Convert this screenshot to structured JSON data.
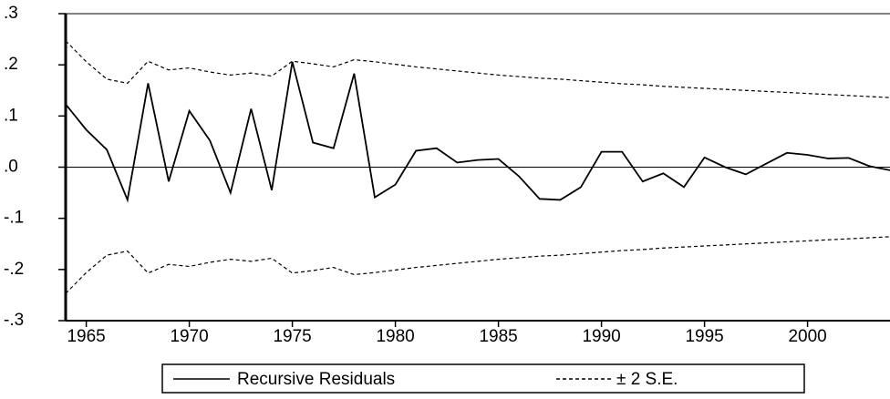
{
  "chart_data": {
    "type": "line",
    "x": [
      1964,
      1965,
      1966,
      1967,
      1968,
      1969,
      1970,
      1971,
      1972,
      1973,
      1974,
      1975,
      1976,
      1977,
      1978,
      1979,
      1980,
      1981,
      1982,
      1983,
      1984,
      1985,
      1986,
      1987,
      1988,
      1989,
      1990,
      1991,
      1992,
      1993,
      1994,
      1995,
      1996,
      1997,
      1998,
      1999,
      2000,
      2001,
      2002,
      2003,
      2004
    ],
    "series": [
      {
        "name": "Recursive Residuals",
        "color": "#000000",
        "style": "solid",
        "values": [
          0.123,
          0.073,
          0.034,
          -0.064,
          0.164,
          -0.028,
          0.11,
          0.052,
          -0.05,
          0.114,
          -0.045,
          0.206,
          0.048,
          0.037,
          0.183,
          -0.059,
          -0.034,
          0.032,
          0.037,
          0.009,
          0.014,
          0.016,
          -0.018,
          -0.062,
          -0.064,
          -0.039,
          0.03,
          0.03,
          -0.028,
          -0.012,
          -0.039,
          0.019,
          0,
          -0.014,
          0.007,
          0.028,
          0.024,
          0.017,
          0.018,
          0.002,
          -0.006
        ]
      },
      {
        "name": "± 2 S.E.",
        "color": "#000000",
        "style": "dashed",
        "values": [
          0.247,
          0.206,
          0.172,
          0.164,
          0.207,
          0.19,
          0.194,
          0.186,
          0.18,
          0.184,
          0.178,
          0.207,
          0.202,
          0.196,
          0.21,
          0.206,
          0.201,
          0.196,
          0.192,
          0.188,
          0.184,
          0.18,
          0.177,
          0.174,
          0.172,
          0.169,
          0.166,
          0.163,
          0.161,
          0.158,
          0.156,
          0.154,
          0.152,
          0.15,
          0.148,
          0.146,
          0.144,
          0.142,
          0.14,
          0.138,
          0.136
        ],
        "lower": [
          -0.247,
          -0.206,
          -0.172,
          -0.164,
          -0.207,
          -0.19,
          -0.194,
          -0.186,
          -0.18,
          -0.184,
          -0.178,
          -0.207,
          -0.202,
          -0.196,
          -0.21,
          -0.206,
          -0.201,
          -0.196,
          -0.192,
          -0.188,
          -0.184,
          -0.18,
          -0.177,
          -0.174,
          -0.172,
          -0.169,
          -0.166,
          -0.163,
          -0.161,
          -0.158,
          -0.156,
          -0.154,
          -0.152,
          -0.15,
          -0.148,
          -0.146,
          -0.144,
          -0.142,
          -0.14,
          -0.138,
          -0.136
        ]
      }
    ],
    "xlim": [
      1964,
      2004
    ],
    "xticks": [
      1965,
      1970,
      1975,
      1980,
      1985,
      1990,
      1995,
      2000
    ],
    "ylim": [
      -0.3,
      0.3
    ],
    "yticks": [
      {
        "value": -0.3,
        "label": "-.3"
      },
      {
        "value": -0.2,
        "label": "-.2"
      },
      {
        "value": -0.1,
        "label": "-.1"
      },
      {
        "value": 0,
        "label": ".0"
      },
      {
        "value": 0.1,
        "label": ".1"
      },
      {
        "value": 0.2,
        "label": ".2"
      },
      {
        "value": 0.3,
        "label": ".3"
      }
    ],
    "zero_line": true,
    "legend": "bottom"
  }
}
